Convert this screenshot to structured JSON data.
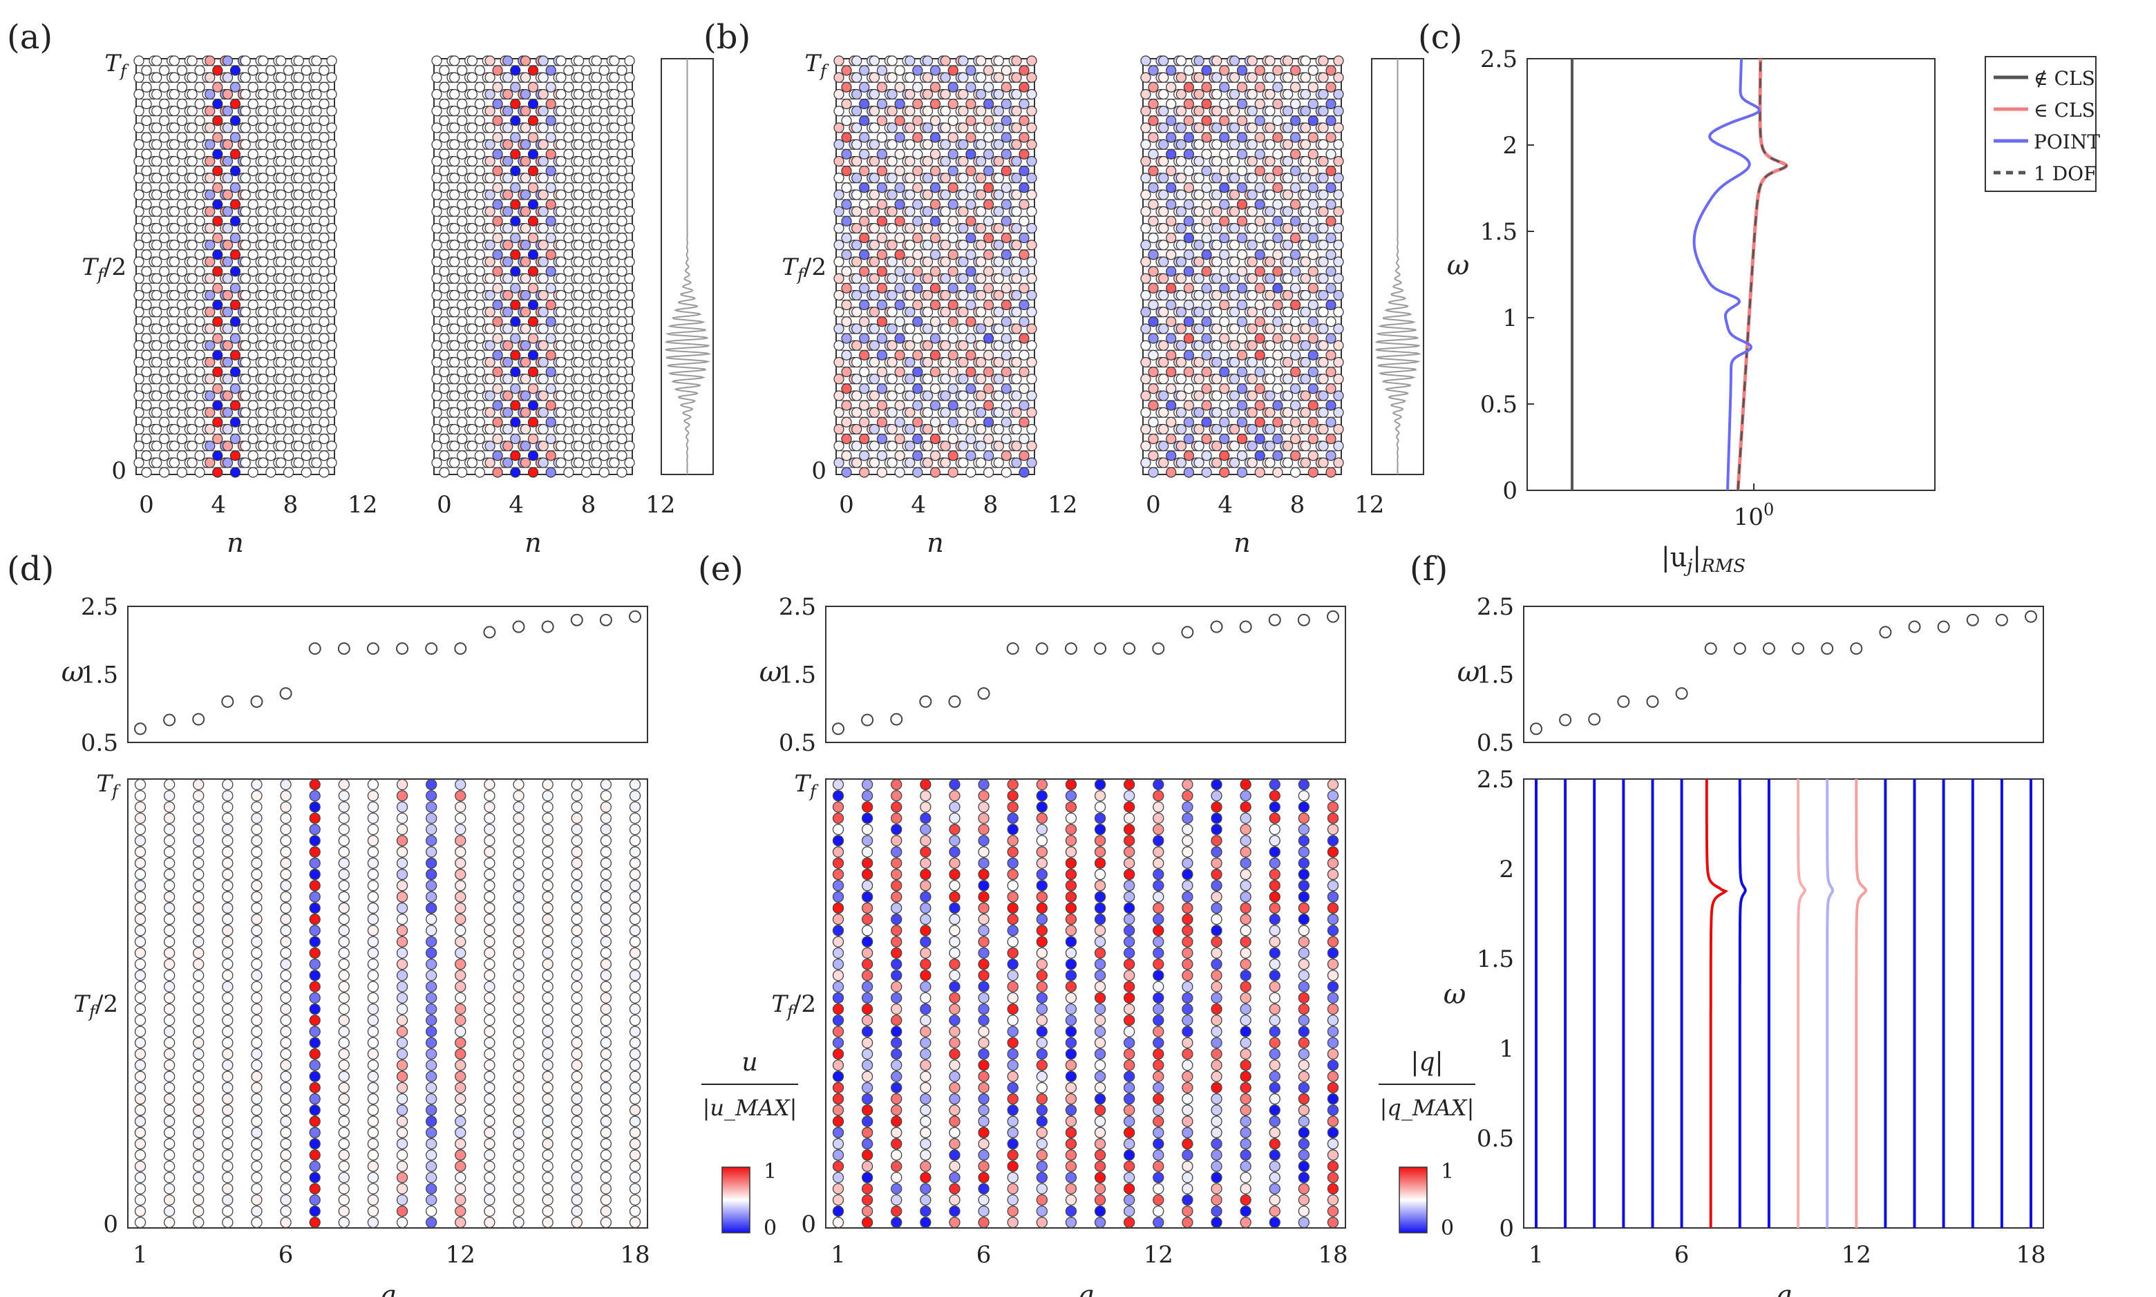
{
  "panels": {
    "a": {
      "label": "(a)"
    },
    "b": {
      "label": "(b)"
    },
    "c": {
      "label": "(c)"
    },
    "d": {
      "label": "(d)"
    },
    "e": {
      "label": "(e)"
    },
    "f": {
      "label": "(f)"
    }
  },
  "lattice": {
    "xlabel": "n",
    "xticks": [
      "0",
      "4",
      "8",
      "12"
    ],
    "yticks": [
      "0",
      "T_f/2",
      "T_f"
    ],
    "nsites": 11,
    "nrows": 25
  },
  "colorbar_u": {
    "num": "u",
    "den": "|u_MAX|",
    "top": "1",
    "bottom": "0"
  },
  "colorbar_q": {
    "num": "|q|",
    "den": "|q_MAX|",
    "top": "1",
    "bottom": "0"
  },
  "chart_data": [
    {
      "panel": "c",
      "type": "line",
      "xlabel": "|u_j|_RMS",
      "ylabel": "ω",
      "xscale": "log",
      "xtick_labels": [
        "10^0"
      ],
      "ylim": [
        0,
        2.5
      ],
      "yticks": [
        "0",
        "0.5",
        "1",
        "1.5",
        "2",
        "2.5"
      ],
      "legend_position": "outside-right-top",
      "series": [
        {
          "name": "∉ CLS",
          "color": "#555555"
        },
        {
          "name": "∈ CLS",
          "color": "#f08080"
        },
        {
          "name": "POINT",
          "color": "#6b6bf0"
        },
        {
          "name": "1 DOF",
          "color": "#555555",
          "dash": true
        }
      ],
      "resonance_peaks": [
        0.83,
        1.1,
        1.88,
        2.2
      ]
    },
    {
      "panel": "d",
      "type": "scatter",
      "ylabel": "ω",
      "ylim": [
        0.5,
        2.5
      ],
      "yticks": [
        "0.5",
        "1.5",
        "2.5"
      ],
      "x": [
        1,
        2,
        3,
        4,
        5,
        6,
        7,
        8,
        9,
        10,
        11,
        12,
        13,
        14,
        15,
        16,
        17,
        18
      ],
      "y": [
        0.7,
        0.83,
        0.84,
        1.1,
        1.1,
        1.22,
        1.88,
        1.88,
        1.88,
        1.88,
        1.88,
        1.88,
        2.12,
        2.2,
        2.2,
        2.3,
        2.3,
        2.35
      ]
    },
    {
      "panel": "d-bottom",
      "type": "heatmap",
      "xlabel": "q",
      "xticks": [
        "1",
        "6",
        "12",
        "18"
      ],
      "yticks": [
        "0",
        "T_f/2",
        "T_f"
      ],
      "active_modes": [
        7,
        10,
        11,
        12
      ]
    },
    {
      "panel": "e",
      "type": "scatter",
      "ylabel": "ω",
      "ylim": [
        0.5,
        2.5
      ],
      "yticks": [
        "0.5",
        "1.5",
        "2.5"
      ],
      "x": [
        1,
        2,
        3,
        4,
        5,
        6,
        7,
        8,
        9,
        10,
        11,
        12,
        13,
        14,
        15,
        16,
        17,
        18
      ],
      "y": [
        0.7,
        0.83,
        0.84,
        1.1,
        1.1,
        1.22,
        1.88,
        1.88,
        1.88,
        1.88,
        1.88,
        1.88,
        2.12,
        2.2,
        2.2,
        2.3,
        2.3,
        2.35
      ]
    },
    {
      "panel": "e-bottom",
      "type": "heatmap",
      "xlabel": "q",
      "xticks": [
        "1",
        "6",
        "12",
        "18"
      ],
      "yticks": [
        "0",
        "T_f/2",
        "T_f"
      ]
    },
    {
      "panel": "f",
      "type": "scatter",
      "ylabel": "ω",
      "ylim": [
        0.5,
        2.5
      ],
      "yticks": [
        "0.5",
        "1.5",
        "2.5"
      ],
      "x": [
        1,
        2,
        3,
        4,
        5,
        6,
        7,
        8,
        9,
        10,
        11,
        12,
        13,
        14,
        15,
        16,
        17,
        18
      ],
      "y": [
        0.7,
        0.83,
        0.84,
        1.1,
        1.1,
        1.22,
        1.88,
        1.88,
        1.88,
        1.88,
        1.88,
        1.88,
        2.12,
        2.2,
        2.2,
        2.3,
        2.3,
        2.35
      ]
    },
    {
      "panel": "f-bottom",
      "type": "line",
      "xlabel": "q",
      "ylabel": "ω",
      "xticks": [
        "1",
        "6",
        "12",
        "18"
      ],
      "ylim": [
        0,
        2.5
      ],
      "yticks": [
        "0",
        "0.5",
        "1",
        "1.5",
        "2",
        "2.5"
      ],
      "peak_omega": 1.88,
      "mode_colors": [
        "#1010d8",
        "#1010d8",
        "#1010d8",
        "#1010d8",
        "#1010d8",
        "#1010d8",
        "#e01010",
        "#1010d8",
        "#1010d8",
        "#f4b0b0",
        "#b0b0f4",
        "#f4a0a0",
        "#1010d8",
        "#1010d8",
        "#1010d8",
        "#1010d8",
        "#1010d8",
        "#1010d8"
      ]
    }
  ]
}
